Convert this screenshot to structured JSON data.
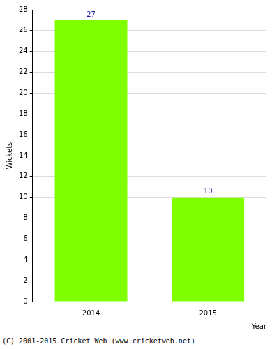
{
  "chart_data": {
    "type": "bar",
    "categories": [
      "2014",
      "2015"
    ],
    "values": [
      27,
      10
    ],
    "color": "#80ff00",
    "xlabel": "Year",
    "ylabel": "Wickets",
    "ylim": [
      0,
      28
    ],
    "yticks": [
      0,
      2,
      4,
      6,
      8,
      10,
      12,
      14,
      16,
      18,
      20,
      22,
      24,
      26,
      28
    ],
    "grid": true,
    "data_labels": true,
    "footer": "(C) 2001-2015 Cricket Web (www.cricketweb.net)"
  }
}
